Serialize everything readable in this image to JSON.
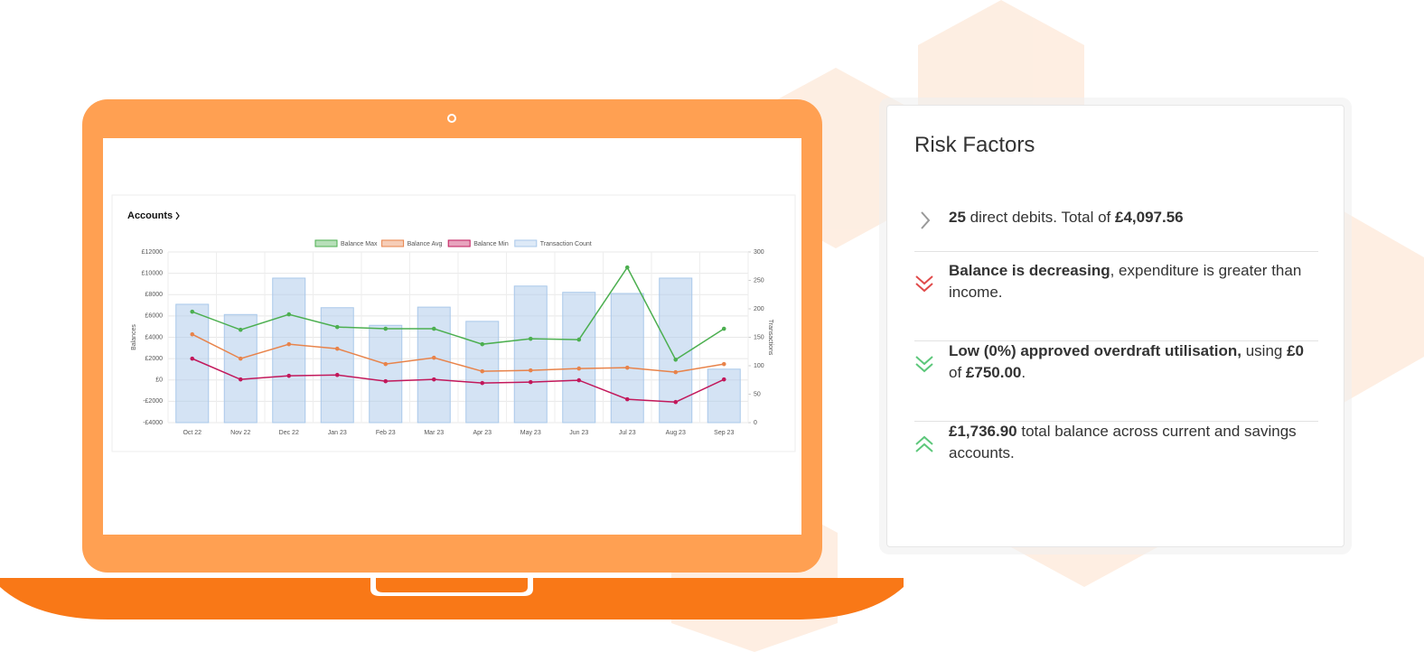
{
  "chart_data": {
    "type": "bar",
    "title": "Accounts",
    "categories": [
      "Oct 22",
      "Nov 22",
      "Dec 22",
      "Jan 23",
      "Feb 23",
      "Mar 23",
      "Apr 23",
      "May 23",
      "Jun 23",
      "Jul 23",
      "Aug 23",
      "Sep 23"
    ],
    "series": [
      {
        "name": "Balance Max",
        "type": "line",
        "color": "#4caf50",
        "values": [
          6400,
          4700,
          6150,
          4960,
          4800,
          4800,
          3350,
          3860,
          3780,
          10550,
          1900,
          4800
        ]
      },
      {
        "name": "Balance Avg",
        "type": "line",
        "color": "#e8834a",
        "values": [
          4280,
          2000,
          3350,
          2930,
          1490,
          2080,
          810,
          900,
          1070,
          1150,
          730,
          1490
        ]
      },
      {
        "name": "Balance Min",
        "type": "line",
        "color": "#c2185b",
        "values": [
          2000,
          50,
          390,
          470,
          -120,
          50,
          -290,
          -200,
          -30,
          -1810,
          -2070,
          50
        ]
      },
      {
        "name": "Transaction Count",
        "type": "bar",
        "axis": "y2",
        "color": "#a9c8ea",
        "values": [
          208,
          190,
          254,
          202,
          171,
          203,
          178,
          240,
          229,
          227,
          254,
          94
        ]
      }
    ],
    "ylabel": "Balances",
    "y2label": "Transactions",
    "ylim": [
      -4000,
      12000
    ],
    "yticks": [
      {
        "value": -4000,
        "label": "-£4000"
      },
      {
        "value": -2000,
        "label": "-£2000"
      },
      {
        "value": 0,
        "label": "£0"
      },
      {
        "value": 2000,
        "label": "£2000"
      },
      {
        "value": 4000,
        "label": "£4000"
      },
      {
        "value": 6000,
        "label": "£6000"
      },
      {
        "value": 8000,
        "label": "£8000"
      },
      {
        "value": 10000,
        "label": "£10000"
      },
      {
        "value": 12000,
        "label": "£12000"
      }
    ],
    "y2lim": [
      0,
      300
    ],
    "y2ticks": [
      0,
      50,
      100,
      150,
      200,
      250,
      300
    ],
    "grid": true,
    "legend": "top"
  },
  "risk_factors": {
    "title": "Risk Factors",
    "items": [
      {
        "parts": [
          {
            "text": "25",
            "bold": true
          },
          {
            "text": " direct debits. Total of ",
            "bold": false
          },
          {
            "text": "£4,097.56",
            "bold": true
          }
        ]
      },
      {
        "parts": [
          {
            "text": "Balance is decreasing",
            "bold": true
          },
          {
            "text": ", expenditure is greater than income.",
            "bold": false
          }
        ]
      },
      {
        "parts": [
          {
            "text": "Low (0%) approved overdraft utilisation,",
            "bold": true
          },
          {
            "text": " using ",
            "bold": false
          },
          {
            "text": "£0",
            "bold": true
          },
          {
            "text": " of ",
            "bold": false
          },
          {
            "text": "£750.00",
            "bold": true
          },
          {
            "text": ".",
            "bold": false
          }
        ]
      },
      {
        "parts": [
          {
            "text": "£1,736.90",
            "bold": true
          },
          {
            "text": " total balance across current and savings accounts.",
            "bold": false
          }
        ]
      }
    ]
  }
}
